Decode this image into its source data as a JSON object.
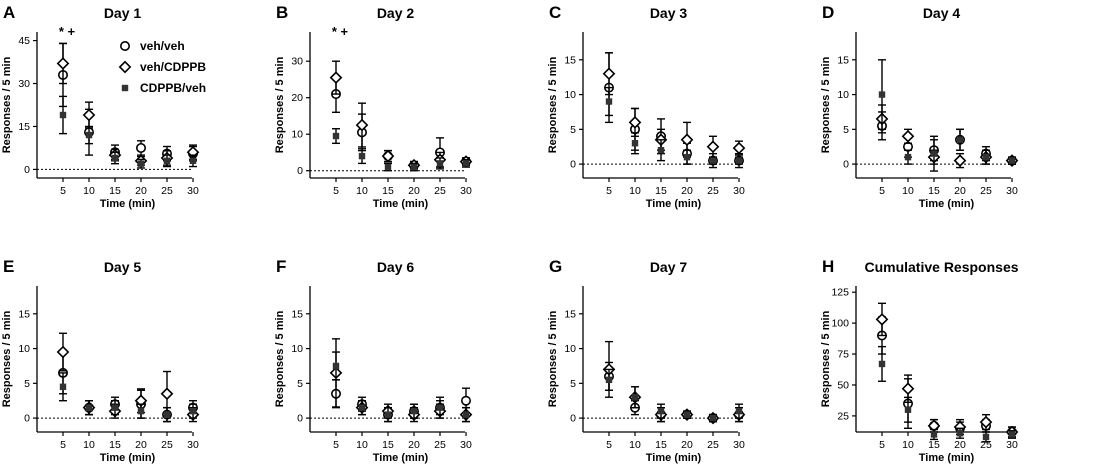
{
  "chart_data": [
    {
      "letter": "A",
      "type": "scatter",
      "title": "Day 1",
      "xlabel": "Time (min)",
      "ylabel": "Responses / 5 min",
      "x": [
        5,
        10,
        15,
        20,
        25,
        30
      ],
      "ylim": [
        -3,
        48
      ],
      "yticks": [
        0,
        15,
        30,
        45
      ],
      "annotation": "* +",
      "series": [
        {
          "name": "veh/veh",
          "values": [
            33,
            13,
            6,
            7.5,
            5.5,
            5.5
          ],
          "errors": [
            11,
            8,
            2.5,
            2.5,
            2.5,
            2.5
          ]
        },
        {
          "name": "veh/CDPPB",
          "values": [
            37,
            19,
            5,
            3,
            4,
            6
          ],
          "errors": [
            7,
            4.5,
            2,
            1.5,
            2.5,
            2.5
          ]
        },
        {
          "name": "CDPPB/veh",
          "values": [
            19,
            12,
            4,
            2,
            3,
            3
          ],
          "errors": [
            6.5,
            3,
            2,
            1.5,
            2,
            2
          ]
        }
      ],
      "legend": [
        "veh/veh",
        "veh/CDPPB",
        "CDPPB/veh"
      ]
    },
    {
      "letter": "B",
      "type": "scatter",
      "title": "Day 2",
      "xlabel": "Time (min)",
      "ylabel": "Responses / 5 min",
      "x": [
        5,
        10,
        15,
        20,
        25,
        30
      ],
      "ylim": [
        -2,
        38
      ],
      "yticks": [
        0,
        10,
        20,
        30
      ],
      "annotation": "* +",
      "series": [
        {
          "name": "veh/veh",
          "values": [
            21,
            10.5,
            4,
            1.5,
            5,
            2.5
          ],
          "errors": [
            5,
            5,
            1.5,
            1,
            4,
            1
          ]
        },
        {
          "name": "veh/CDPPB",
          "values": [
            25.5,
            12.5,
            4,
            1.5,
            3,
            2.5
          ],
          "errors": [
            4.5,
            6,
            1.5,
            1,
            2,
            1
          ]
        },
        {
          "name": "CDPPB/veh",
          "values": [
            9.5,
            4,
            1,
            1,
            2,
            2
          ],
          "errors": [
            2,
            2,
            1,
            1,
            1.5,
            1
          ]
        }
      ]
    },
    {
      "letter": "C",
      "type": "scatter",
      "title": "Day 3",
      "xlabel": "Time (min)",
      "ylabel": "Responses / 5 min",
      "x": [
        5,
        10,
        15,
        20,
        25,
        30
      ],
      "ylim": [
        -2,
        19
      ],
      "yticks": [
        0,
        5,
        10,
        15
      ],
      "series": [
        {
          "name": "veh/veh",
          "values": [
            11,
            5,
            4,
            1.5,
            0.5,
            0.5
          ],
          "errors": [
            5,
            3,
            2.5,
            1.5,
            1,
            1
          ]
        },
        {
          "name": "veh/CDPPB",
          "values": [
            13,
            6,
            3.5,
            3.5,
            2.5,
            2.3
          ],
          "errors": [
            3,
            2,
            1.5,
            2.5,
            1.5,
            1
          ]
        },
        {
          "name": "CDPPB/veh",
          "values": [
            9,
            3,
            2,
            1,
            0.5,
            0.5
          ],
          "errors": [
            2,
            1.5,
            1.5,
            1,
            0.5,
            0.5
          ]
        }
      ]
    },
    {
      "letter": "D",
      "type": "scatter",
      "title": "Day 4",
      "xlabel": "Time (min)",
      "ylabel": "Responses / 5 min",
      "x": [
        5,
        10,
        15,
        20,
        25,
        30
      ],
      "ylim": [
        -2,
        19
      ],
      "yticks": [
        0,
        5,
        10,
        15
      ],
      "series": [
        {
          "name": "veh/veh",
          "values": [
            5.5,
            2.5,
            2,
            3.5,
            1.5,
            0.5
          ],
          "errors": [
            2,
            1.5,
            1.5,
            1.5,
            1,
            0.5
          ]
        },
        {
          "name": "veh/CDPPB",
          "values": [
            6.5,
            4,
            1,
            0.5,
            1,
            0.5
          ],
          "errors": [
            2,
            1,
            1,
            1,
            1,
            0.5
          ]
        },
        {
          "name": "CDPPB/veh",
          "values": [
            10,
            1,
            1.5,
            3.5,
            1,
            0.5
          ],
          "errors": [
            5,
            1,
            2.5,
            1.5,
            1,
            0.5
          ]
        }
      ]
    },
    {
      "letter": "E",
      "type": "scatter",
      "title": "Day 5",
      "xlabel": "Time (min)",
      "ylabel": "Responses / 5 min",
      "x": [
        5,
        10,
        15,
        20,
        25,
        30
      ],
      "ylim": [
        -2,
        19
      ],
      "yticks": [
        0,
        5,
        10,
        15
      ],
      "series": [
        {
          "name": "veh/veh",
          "values": [
            6.5,
            1.5,
            2,
            2,
            0.5,
            1.5
          ],
          "errors": [
            3,
            1,
            1,
            2,
            1,
            1
          ]
        },
        {
          "name": "veh/CDPPB",
          "values": [
            9.5,
            1.5,
            1,
            2.5,
            3.5,
            0.5
          ],
          "errors": [
            2.7,
            1,
            1,
            1.7,
            3.2,
            1
          ]
        },
        {
          "name": "CDPPB/veh",
          "values": [
            4.5,
            1.5,
            1.5,
            1,
            0.5,
            1
          ],
          "errors": [
            2,
            1,
            1,
            1,
            1,
            1
          ]
        }
      ]
    },
    {
      "letter": "F",
      "type": "scatter",
      "title": "Day 6",
      "xlabel": "Time (min)",
      "ylabel": "Responses / 5 min",
      "x": [
        5,
        10,
        15,
        20,
        25,
        30
      ],
      "ylim": [
        -2,
        19
      ],
      "yticks": [
        0,
        5,
        10,
        15
      ],
      "series": [
        {
          "name": "veh/veh",
          "values": [
            3.5,
            2,
            0.5,
            1,
            1.5,
            2.5
          ],
          "errors": [
            2,
            1,
            1,
            1,
            1.5,
            1.8
          ]
        },
        {
          "name": "veh/CDPPB",
          "values": [
            6.5,
            1.5,
            1,
            0.5,
            1,
            0.5
          ],
          "errors": [
            4.9,
            1,
            1,
            1,
            1,
            1
          ]
        },
        {
          "name": "CDPPB/veh",
          "values": [
            7.5,
            1.5,
            0.5,
            1,
            1.5,
            0.5
          ],
          "errors": [
            2,
            1,
            1,
            1,
            1,
            1
          ]
        }
      ]
    },
    {
      "letter": "G",
      "type": "scatter",
      "title": "Day 7",
      "xlabel": "Time (min)",
      "ylabel": "Responses / 5 min",
      "x": [
        5,
        10,
        15,
        20,
        25,
        30
      ],
      "ylim": [
        -2,
        19
      ],
      "yticks": [
        0,
        5,
        10,
        15
      ],
      "series": [
        {
          "name": "veh/veh",
          "values": [
            6,
            1.5,
            0.5,
            0.5,
            0,
            0.5
          ],
          "errors": [
            2,
            1,
            1,
            0.5,
            0.5,
            1
          ]
        },
        {
          "name": "veh/CDPPB",
          "values": [
            7,
            3,
            0.5,
            0.5,
            0,
            0.5
          ],
          "errors": [
            4,
            1.5,
            1,
            0.5,
            0.5,
            1
          ]
        },
        {
          "name": "CDPPB/veh",
          "values": [
            5.5,
            3,
            1,
            0.5,
            0,
            1
          ],
          "errors": [
            1.5,
            1.5,
            1,
            0.5,
            0.5,
            1
          ]
        }
      ]
    },
    {
      "letter": "H",
      "type": "scatter",
      "title": "Cumulative Responses",
      "xlabel": "Time (min)",
      "ylabel": "Responses / 5 min",
      "x": [
        5,
        10,
        15,
        20,
        25,
        30
      ],
      "ylim": [
        12,
        130
      ],
      "yticks": [
        25,
        50,
        75,
        100,
        125
      ],
      "series": [
        {
          "name": "veh/veh",
          "values": [
            90,
            35,
            17,
            15,
            17,
            12
          ],
          "errors": [
            15,
            20,
            5,
            5,
            5,
            4
          ]
        },
        {
          "name": "veh/CDPPB",
          "values": [
            103,
            47,
            17,
            16,
            20,
            12
          ],
          "errors": [
            13,
            11,
            5,
            6,
            6,
            4
          ]
        },
        {
          "name": "CDPPB/veh",
          "values": [
            67,
            30,
            10,
            11,
            8,
            10
          ],
          "errors": [
            14,
            10,
            4,
            4,
            4,
            3
          ]
        }
      ]
    }
  ]
}
